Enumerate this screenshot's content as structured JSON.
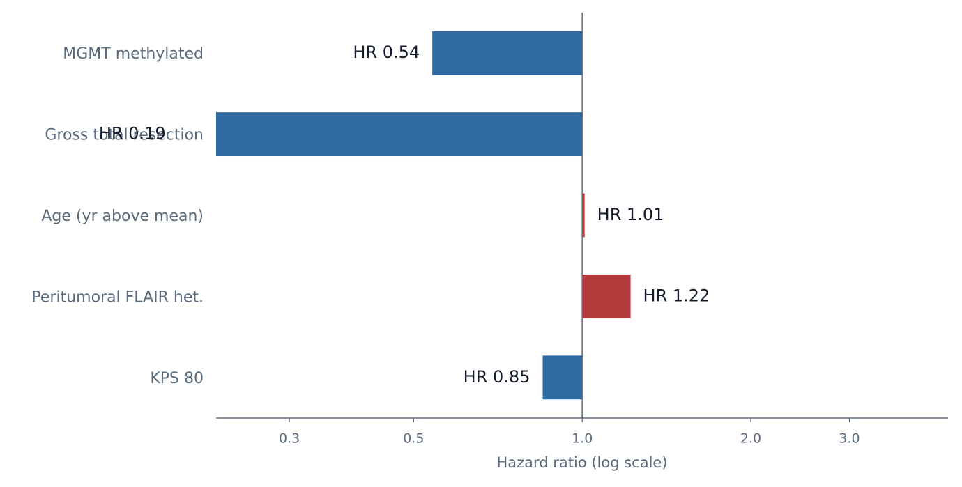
{
  "chart_data": {
    "type": "bar",
    "orientation": "horizontal",
    "log_scale": true,
    "xlabel": "Hazard ratio (log scale)",
    "categories": [
      "MGMT methylated",
      "Gross total resection",
      "Age (yr above mean)",
      "Peritumoral FLAIR het.",
      "KPS 80"
    ],
    "values": [
      0.54,
      0.19,
      1.01,
      1.22,
      0.85
    ],
    "value_labels": [
      "HR 0.54",
      "HR 0.19",
      "HR 1.01",
      "HR 1.22",
      "HR 0.85"
    ],
    "colors": [
      "#2f6aa3",
      "#2f6aa3",
      "#b23a3a",
      "#b23a3a",
      "#2f6aa3"
    ],
    "baseline": 1,
    "xlim": [
      0.222,
      4.5
    ],
    "xticks": [
      0.3,
      0.5,
      {
        "value": 1,
        "label": "1.0"
      },
      {
        "value": 2,
        "label": "2.0"
      },
      {
        "value": 3,
        "label": "3.0"
      }
    ]
  }
}
